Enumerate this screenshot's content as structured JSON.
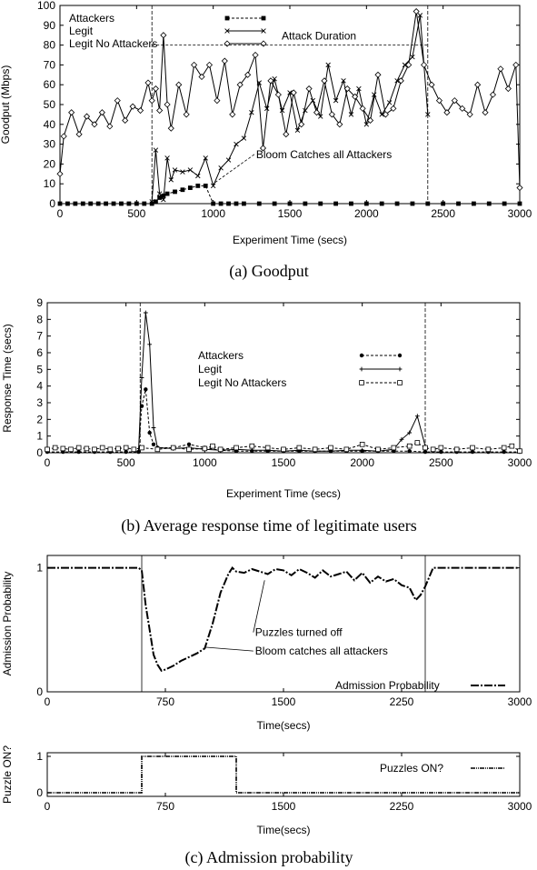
{
  "captions": {
    "a": "(a) Goodput",
    "b": "(b) Average response time of legitimate users",
    "c": "(c) Admission probability"
  },
  "chart_data": [
    {
      "id": "goodput",
      "type": "line",
      "title": "",
      "xlabel": "Experiment Time (secs)",
      "ylabel": "Goodput (Mbps)",
      "xlim": [
        0,
        3000
      ],
      "ylim": [
        0,
        100
      ],
      "xticks": [
        0,
        500,
        1000,
        1500,
        2000,
        2500,
        3000
      ],
      "yticks": [
        0,
        10,
        20,
        30,
        40,
        50,
        60,
        70,
        80,
        90,
        100
      ],
      "vlines": [
        600,
        2400
      ],
      "annotations": [
        {
          "text": "Attack Duration",
          "x": 1690,
          "y": 80
        },
        {
          "text": "Bloom Catches all Attackers",
          "x": 1280,
          "y": 23,
          "arrow_to": [
            1000,
            10
          ]
        }
      ],
      "legend_position": "top-left",
      "series": [
        {
          "name": "Attackers",
          "marker": "filled-square",
          "x": [
            0,
            50,
            100,
            150,
            200,
            250,
            300,
            350,
            400,
            450,
            500,
            550,
            600,
            625,
            650,
            675,
            700,
            750,
            800,
            850,
            900,
            950,
            1000,
            1050,
            1100,
            1150,
            1200,
            1300,
            1400,
            1500,
            1600,
            1700,
            1800,
            1900,
            2000,
            2100,
            2200,
            2300,
            2400,
            2500,
            2600,
            2700,
            2800,
            2900,
            3000
          ],
          "y": [
            0,
            0,
            0,
            0,
            0,
            0,
            0,
            0,
            0,
            0,
            0,
            0,
            0,
            1,
            3,
            4,
            5,
            6,
            7,
            8,
            9,
            9,
            0,
            0,
            0,
            0,
            0,
            0,
            0,
            0,
            0,
            0,
            0,
            0,
            0,
            0,
            0,
            0,
            0,
            0,
            0,
            0,
            0,
            0,
            0
          ]
        },
        {
          "name": "Legit",
          "marker": "cross",
          "x": [
            600,
            625,
            650,
            675,
            700,
            725,
            750,
            800,
            850,
            900,
            950,
            1000,
            1050,
            1100,
            1150,
            1200,
            1250,
            1300,
            1350,
            1400,
            1450,
            1500,
            1550,
            1600,
            1650,
            1700,
            1750,
            1800,
            1850,
            1900,
            1950,
            2000,
            2050,
            2100,
            2150,
            2200,
            2250,
            2300,
            2350,
            2400
          ],
          "y": [
            1,
            27,
            5,
            2,
            23,
            12,
            17,
            16,
            17,
            14,
            23,
            9,
            18,
            22,
            30,
            33,
            46,
            61,
            48,
            63,
            47,
            56,
            37,
            47,
            52,
            44,
            70,
            52,
            62,
            45,
            58,
            40,
            55,
            45,
            51,
            62,
            70,
            74,
            95,
            45
          ]
        },
        {
          "name": "Legit No Attackers",
          "marker": "diamond",
          "x": [
            0,
            25,
            75,
            125,
            175,
            225,
            275,
            325,
            375,
            425,
            475,
            525,
            575,
            600,
            625,
            650,
            675,
            700,
            725,
            775,
            825,
            875,
            925,
            975,
            1025,
            1075,
            1125,
            1175,
            1225,
            1275,
            1325,
            1375,
            1425,
            1475,
            1525,
            1575,
            1625,
            1675,
            1725,
            1775,
            1825,
            1875,
            1925,
            1975,
            2025,
            2075,
            2125,
            2175,
            2225,
            2275,
            2325,
            2375,
            2425,
            2475,
            2525,
            2575,
            2625,
            2675,
            2725,
            2775,
            2825,
            2875,
            2925,
            2975,
            3000
          ],
          "y": [
            15,
            34,
            46,
            35,
            44,
            40,
            46,
            39,
            52,
            42,
            49,
            47,
            61,
            52,
            58,
            47,
            85,
            50,
            38,
            60,
            45,
            70,
            64,
            70,
            52,
            72,
            45,
            60,
            65,
            75,
            28,
            62,
            55,
            35,
            56,
            40,
            58,
            46,
            62,
            45,
            40,
            58,
            54,
            48,
            42,
            65,
            45,
            48,
            62,
            70,
            97,
            70,
            60,
            52,
            46,
            52,
            48,
            45,
            60,
            46,
            55,
            68,
            58,
            70,
            8
          ]
        }
      ]
    },
    {
      "id": "response_time",
      "type": "line",
      "title": "",
      "xlabel": "Experiment Time (secs)",
      "ylabel": "Response Time (secs)",
      "xlim": [
        0,
        3000
      ],
      "ylim": [
        0,
        9
      ],
      "xticks": [
        0,
        500,
        1000,
        1500,
        2000,
        2500,
        3000
      ],
      "yticks": [
        0,
        1,
        2,
        3,
        4,
        5,
        6,
        7,
        8,
        9
      ],
      "vlines": [
        590,
        2400
      ],
      "legend_position": "center",
      "series": [
        {
          "name": "Attackers",
          "marker": "filled-circle",
          "x": [
            0,
            100,
            200,
            300,
            400,
            500,
            580,
            600,
            625,
            650,
            675,
            700,
            800,
            900,
            1000,
            1100,
            1200,
            1300,
            1400,
            1500,
            1600,
            1700,
            1800,
            1900,
            2000,
            2100,
            2200,
            2300,
            2400,
            2500,
            2600,
            2700,
            2800,
            2900,
            3000
          ],
          "y": [
            0.05,
            0.05,
            0.05,
            0.05,
            0.05,
            0.05,
            0.05,
            2.8,
            3.8,
            1.2,
            0.5,
            0.3,
            0.3,
            0.5,
            0.3,
            0.15,
            0.1,
            0.1,
            0.1,
            0.1,
            0.1,
            0.1,
            0.1,
            0.1,
            0.1,
            0.1,
            0.1,
            0.1,
            0.05,
            0.05,
            0.05,
            0.05,
            0.05,
            0.05,
            0.05
          ]
        },
        {
          "name": "Legit",
          "marker": "plus",
          "x": [
            580,
            600,
            625,
            650,
            675,
            700,
            800,
            900,
            1000,
            1100,
            1200,
            1300,
            1400,
            1500,
            1600,
            1700,
            1800,
            1900,
            2000,
            2100,
            2200,
            2250,
            2300,
            2350,
            2400
          ],
          "y": [
            0.1,
            4.5,
            8.4,
            6.5,
            1.5,
            0.3,
            0.25,
            0.3,
            0.2,
            0.15,
            0.2,
            0.15,
            0.15,
            0.1,
            0.15,
            0.1,
            0.1,
            0.15,
            0.15,
            0.1,
            0.2,
            0.8,
            1.2,
            2.2,
            0.4
          ]
        },
        {
          "name": "Legit No Attackers",
          "marker": "square",
          "x": [
            0,
            50,
            100,
            150,
            200,
            250,
            300,
            350,
            400,
            450,
            500,
            550,
            600,
            700,
            800,
            900,
            1000,
            1050,
            1100,
            1200,
            1300,
            1400,
            1500,
            1600,
            1700,
            1800,
            1900,
            2000,
            2100,
            2200,
            2300,
            2350,
            2400,
            2450,
            2500,
            2600,
            2700,
            2800,
            2900,
            2950,
            3000
          ],
          "y": [
            0.2,
            0.3,
            0.25,
            0.2,
            0.3,
            0.25,
            0.2,
            0.3,
            0.2,
            0.25,
            0.3,
            0.2,
            0.3,
            0.2,
            0.3,
            0.2,
            0.25,
            0.4,
            0.2,
            0.3,
            0.4,
            0.3,
            0.2,
            0.3,
            0.2,
            0.3,
            0.2,
            0.5,
            0.2,
            0.3,
            0.4,
            0.6,
            0.3,
            0.2,
            0.3,
            0.2,
            0.3,
            0.2,
            0.3,
            0.4,
            0.1
          ]
        }
      ]
    },
    {
      "id": "admission_probability",
      "type": "line",
      "title": "",
      "xlabel": "Time(secs)",
      "ylabel": "Admission Probability",
      "xlim": [
        0,
        3000
      ],
      "ylim": [
        0,
        1.1
      ],
      "xticks": [
        0,
        750,
        1500,
        2250,
        3000
      ],
      "yticks": [
        0,
        1
      ],
      "vlines": [
        600,
        2400
      ],
      "annotations": [
        {
          "text": "Puzzles turned off",
          "x": 1320,
          "y": 0.45,
          "arrow_to": [
            1380,
            0.9
          ]
        },
        {
          "text": "Bloom catches all attackers",
          "x": 1320,
          "y": 0.3,
          "arrow_to": [
            1000,
            0.36
          ]
        }
      ],
      "legend_position": "bottom-right",
      "series": [
        {
          "name": "Admission Probability",
          "x": [
            0,
            580,
            600,
            625,
            650,
            675,
            700,
            725,
            750,
            800,
            850,
            900,
            950,
            1000,
            1050,
            1100,
            1150,
            1175,
            1200,
            1250,
            1300,
            1350,
            1400,
            1450,
            1500,
            1550,
            1600,
            1650,
            1700,
            1750,
            1800,
            1850,
            1900,
            1950,
            2000,
            2050,
            2100,
            2150,
            2200,
            2250,
            2300,
            2340,
            2370,
            2400,
            2450,
            2500,
            3000
          ],
          "y": [
            1,
            1,
            0.98,
            0.7,
            0.5,
            0.3,
            0.22,
            0.17,
            0.18,
            0.21,
            0.25,
            0.28,
            0.31,
            0.35,
            0.55,
            0.8,
            0.95,
            1,
            0.97,
            0.96,
            0.99,
            0.97,
            0.95,
            0.99,
            0.98,
            0.94,
            0.99,
            0.96,
            0.92,
            0.98,
            0.93,
            0.95,
            0.97,
            0.9,
            0.96,
            0.88,
            0.93,
            0.89,
            0.91,
            0.86,
            0.84,
            0.74,
            0.78,
            0.85,
            1,
            1,
            1
          ]
        }
      ]
    },
    {
      "id": "puzzles_on",
      "type": "line",
      "title": "",
      "xlabel": "Time(secs)",
      "ylabel": "Puzzle ON?",
      "xlim": [
        0,
        3000
      ],
      "ylim": [
        -0.1,
        1.1
      ],
      "xticks": [
        0,
        750,
        1500,
        2250,
        3000
      ],
      "yticks": [
        0,
        1
      ],
      "legend_position": "top-right",
      "series": [
        {
          "name": "Puzzles ON?",
          "x": [
            0,
            600,
            600,
            1200,
            1200,
            3000
          ],
          "y": [
            0,
            0,
            1,
            1,
            0,
            0
          ]
        }
      ]
    }
  ]
}
